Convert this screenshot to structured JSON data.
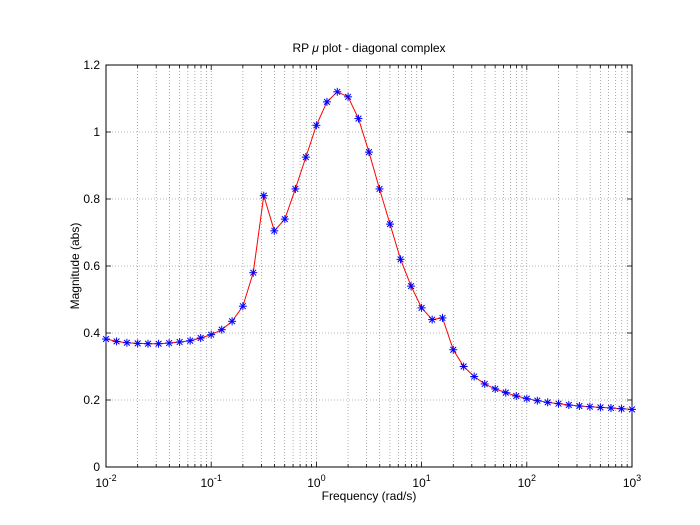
{
  "chart_data": {
    "type": "line",
    "title": {
      "prefix": "RP ",
      "symbol": "μ",
      "suffix": " plot - diagonal complex"
    },
    "xlabel": "Frequency  (rad/s)",
    "ylabel": "Magnitude (abs)",
    "xscale": "log",
    "xlim": [
      0.01,
      1000
    ],
    "ylim": [
      0,
      1.2
    ],
    "grid": "dotted",
    "x_ticks": [
      {
        "base": "10",
        "exp": "-2"
      },
      {
        "base": "10",
        "exp": "-1"
      },
      {
        "base": "10",
        "exp": "0"
      },
      {
        "base": "10",
        "exp": "1"
      },
      {
        "base": "10",
        "exp": "2"
      },
      {
        "base": "10",
        "exp": "3"
      }
    ],
    "y_ticks": [
      "0",
      "0.2",
      "0.4",
      "0.6",
      "0.8",
      "1",
      "1.2"
    ],
    "y_tick_values": [
      0,
      0.2,
      0.4,
      0.6,
      0.8,
      1.0,
      1.2
    ],
    "line_color": "#ff0000",
    "marker_color": "#0000ff",
    "marker": "*",
    "series": [
      {
        "name": "RP mu",
        "x": [
          0.01,
          0.0126,
          0.0158,
          0.02,
          0.0251,
          0.0316,
          0.0398,
          0.0501,
          0.0631,
          0.0794,
          0.1,
          0.126,
          0.158,
          0.2,
          0.251,
          0.316,
          0.398,
          0.501,
          0.631,
          0.794,
          1.0,
          1.26,
          1.58,
          2.0,
          2.51,
          3.16,
          3.98,
          5.01,
          6.31,
          7.94,
          10,
          12.6,
          15.8,
          20,
          25.1,
          31.6,
          39.8,
          50.1,
          63.1,
          79.4,
          100,
          126,
          158,
          200,
          251,
          316,
          398,
          501,
          631,
          794,
          1000
        ],
        "y": [
          0.382,
          0.375,
          0.371,
          0.369,
          0.368,
          0.368,
          0.37,
          0.373,
          0.377,
          0.385,
          0.395,
          0.41,
          0.435,
          0.48,
          0.58,
          0.81,
          0.705,
          0.74,
          0.83,
          0.925,
          1.02,
          1.09,
          1.12,
          1.105,
          1.04,
          0.94,
          0.83,
          0.725,
          0.62,
          0.54,
          0.475,
          0.44,
          0.445,
          0.35,
          0.3,
          0.27,
          0.248,
          0.233,
          0.222,
          0.212,
          0.204,
          0.198,
          0.193,
          0.189,
          0.185,
          0.182,
          0.18,
          0.178,
          0.176,
          0.174,
          0.172
        ]
      }
    ]
  }
}
